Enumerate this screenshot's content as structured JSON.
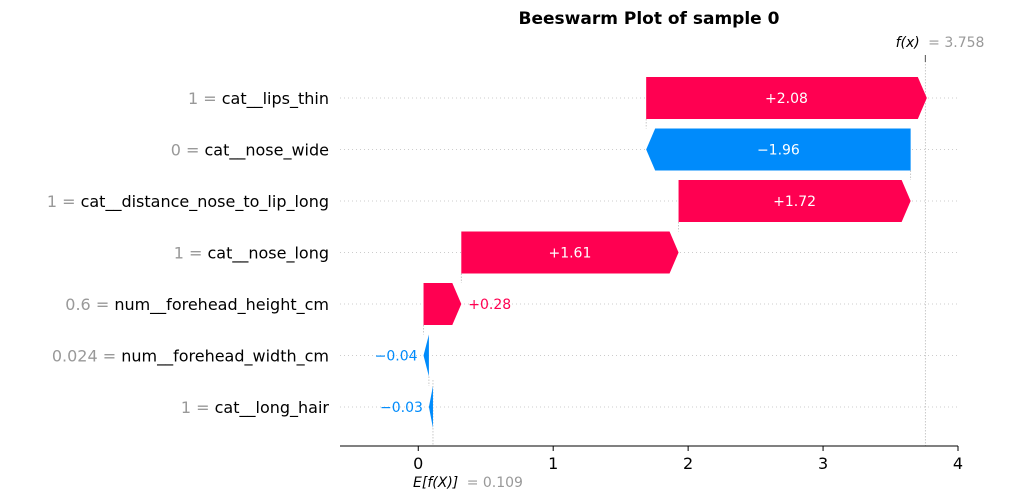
{
  "chart_data": {
    "type": "waterfall",
    "title": "Beeswarm Plot of sample 0",
    "base_value": 0.109,
    "base_label_expr": "E[f(X)]",
    "base_label_value": "= 0.109",
    "output_value": 3.758,
    "output_label_expr": "f(x)",
    "output_label_value": "= 3.758",
    "xlim": [
      -0.58,
      4.0
    ],
    "xticks": [
      0,
      1,
      2,
      3,
      4
    ],
    "features": [
      {
        "value": "1",
        "name": "cat__lips_thin",
        "shap": 2.08,
        "label": "+2.08"
      },
      {
        "value": "0",
        "name": "cat__nose_wide",
        "shap": -1.96,
        "label": "−1.96"
      },
      {
        "value": "1",
        "name": "cat__distance_nose_to_lip_long",
        "shap": 1.72,
        "label": "+1.72"
      },
      {
        "value": "1",
        "name": "cat__nose_long",
        "shap": 1.61,
        "label": "+1.61"
      },
      {
        "value": "0.6",
        "name": "num__forehead_height_cm",
        "shap": 0.28,
        "label": "+0.28"
      },
      {
        "value": "0.024",
        "name": "num__forehead_width_cm",
        "shap": -0.04,
        "label": "−0.04"
      },
      {
        "value": "1",
        "name": "cat__long_hair",
        "shap": -0.03,
        "label": "−0.03"
      }
    ],
    "colors": {
      "positive": "#ff0051",
      "negative": "#008bfb",
      "value_gray": "#999999",
      "grid": "#cccccc"
    }
  }
}
